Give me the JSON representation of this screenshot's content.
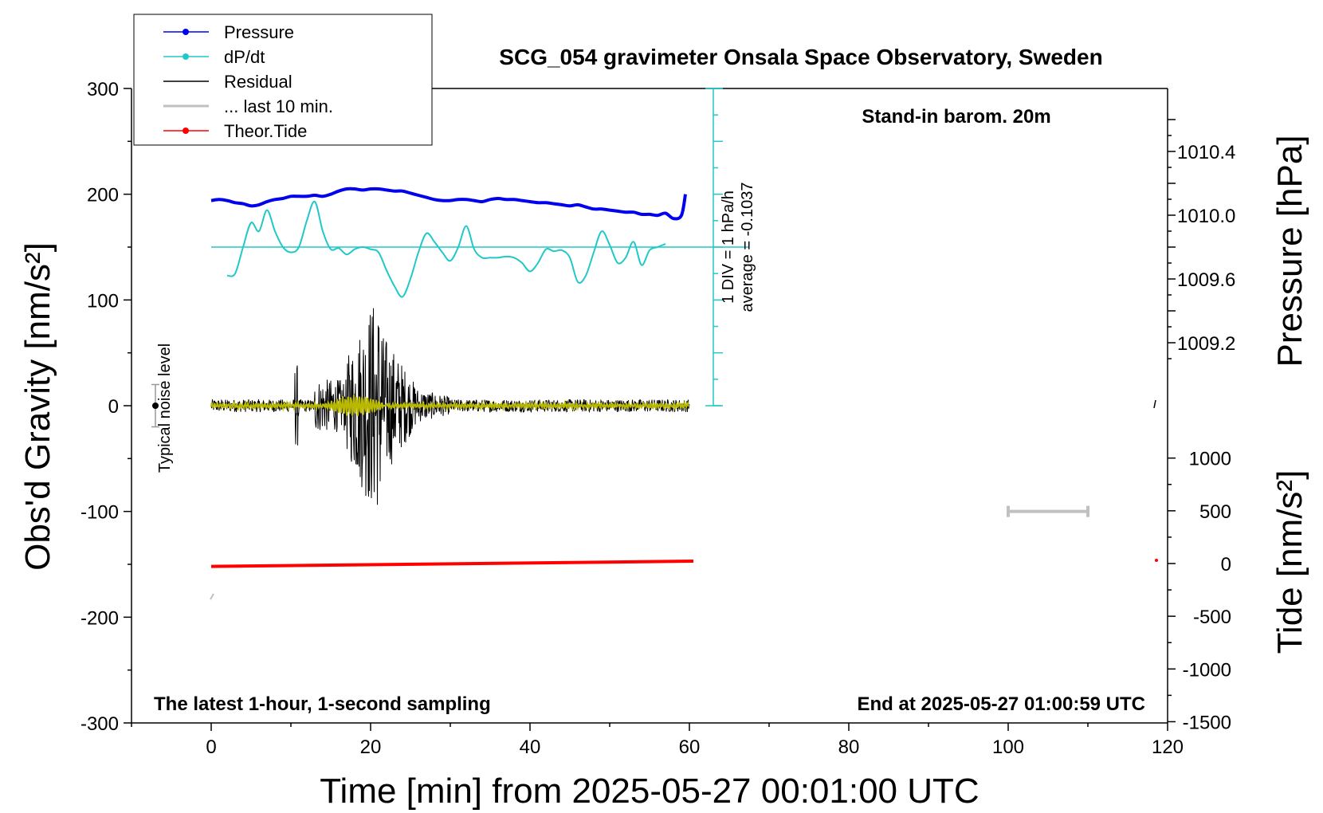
{
  "chart_data": {
    "type": "line",
    "title": "SCG_054 gravimeter Onsala Space Observatory, Sweden",
    "xlabel": "Time [min] from 2025-05-27 00:01:00 UTC",
    "ylabel": "Obs'd Gravity [nm/s²]",
    "y2label_top": "Pressure [hPa]",
    "y2label_bottom": "Tide [nm/s²]",
    "xlim": [
      -10,
      120
    ],
    "ylim": [
      -300,
      300
    ],
    "x_ticks": [
      "0",
      "20",
      "40",
      "60",
      "80",
      "100",
      "120"
    ],
    "y_ticks": [
      "300",
      "200",
      "100",
      "0",
      "-100",
      "-200",
      "-300"
    ],
    "pressure_ticks": [
      "1010.4",
      "1010.0",
      "1009.6",
      "1009.2"
    ],
    "tide_ticks": [
      "1000",
      "500",
      "0",
      "-500",
      "-1000",
      "-1500"
    ],
    "annotations": {
      "barometer": "Stand-in barom. 20m",
      "window": "The latest 1-hour, 1-second sampling",
      "end_time": "End at 2025-05-27 01:00:59 UTC",
      "noise": "Typical noise level",
      "dpdt_scale": "1 DIV = 1 hPa/h",
      "dpdt_average": "average = -0.1037"
    },
    "legend": [
      {
        "label": "Pressure",
        "color": "#0000ee",
        "style": "line-dot"
      },
      {
        "label": "dP/dt",
        "color": "#20c8c8",
        "style": "line-dot"
      },
      {
        "label": "Residual",
        "color": "#000000",
        "style": "line"
      },
      {
        "label": "... last 10 min.",
        "color": "#c0c0c0",
        "style": "line"
      },
      {
        "label": "Theor.Tide",
        "color": "#ff0000",
        "style": "line-dot"
      }
    ],
    "series": [
      {
        "name": "Pressure",
        "units": "nm/s² (plotted)",
        "color": "#0000ee",
        "x": [
          0,
          1,
          2,
          3,
          4,
          5,
          6,
          7,
          8,
          9,
          10,
          11,
          12,
          13,
          14,
          15,
          16,
          17,
          18,
          19,
          20,
          21,
          22,
          23,
          24,
          25,
          26,
          27,
          28,
          29,
          30,
          31,
          32,
          33,
          34,
          35,
          36,
          37,
          38,
          39,
          40,
          41,
          42,
          43,
          44,
          45,
          46,
          47,
          48,
          49,
          50,
          51,
          52,
          53,
          54,
          55,
          56,
          57,
          58,
          59,
          59.5
        ],
        "values": [
          194,
          195,
          194,
          192,
          191,
          189,
          190,
          193,
          195,
          196,
          198,
          198,
          198,
          199,
          198,
          200,
          203,
          205,
          205,
          204,
          205,
          205,
          204,
          203,
          203,
          201,
          199,
          197,
          195,
          194,
          194,
          195,
          195,
          194,
          193,
          195,
          196,
          195,
          195,
          194,
          193,
          192,
          192,
          191,
          190,
          189,
          190,
          188,
          186,
          186,
          185,
          184,
          183,
          183,
          181,
          181,
          180,
          182,
          177,
          180,
          200
        ]
      },
      {
        "name": "dP/dt",
        "units": "nm/s² (plotted)",
        "color": "#20c8c8",
        "x": [
          2,
          3,
          4,
          5,
          6,
          7,
          8,
          9,
          10,
          11,
          12,
          13,
          14,
          15,
          16,
          17,
          18,
          19,
          20,
          21,
          22,
          23,
          24,
          25,
          26,
          27,
          28,
          29,
          30,
          31,
          32,
          33,
          34,
          35,
          36,
          37,
          38,
          39,
          40,
          41,
          42,
          43,
          44,
          45,
          46,
          47,
          48,
          49,
          50,
          51,
          52,
          53,
          54,
          55,
          56,
          57
        ],
        "values": [
          123,
          125,
          150,
          173,
          165,
          185,
          165,
          150,
          145,
          150,
          175,
          193,
          165,
          148,
          149,
          143,
          148,
          150,
          148,
          145,
          128,
          113,
          103,
          120,
          145,
          163,
          155,
          145,
          137,
          150,
          170,
          148,
          140,
          140,
          140,
          141,
          140,
          135,
          127,
          135,
          148,
          146,
          147,
          140,
          117,
          123,
          145,
          165,
          152,
          135,
          140,
          155,
          133,
          147,
          150,
          153
        ]
      },
      {
        "name": "Theor.Tide",
        "units": "nm/s² (plotted)",
        "color": "#ff0000",
        "x": [
          0,
          60.5
        ],
        "values": [
          -152,
          -147
        ]
      }
    ],
    "noise_level": {
      "x": -7,
      "center": 0,
      "half_range": 20
    },
    "scale_bar_10min": {
      "x_start": 100,
      "x_end": 110,
      "y": -100
    }
  }
}
